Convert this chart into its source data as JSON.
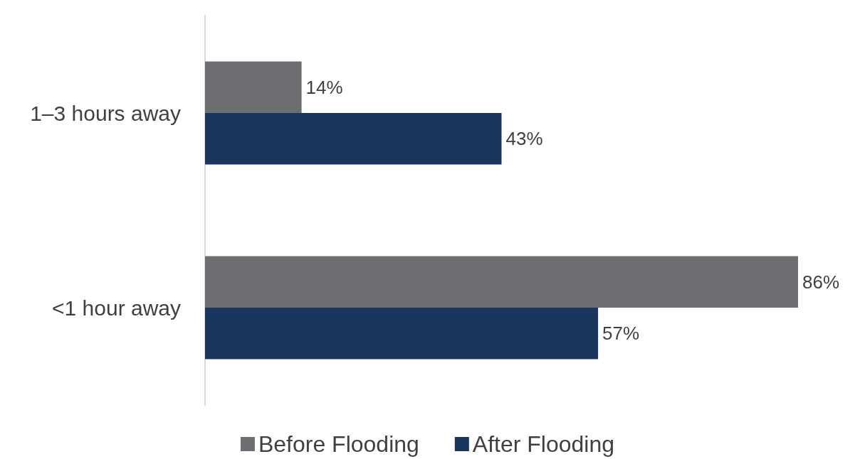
{
  "chart_data": {
    "type": "bar",
    "orientation": "horizontal",
    "categories": [
      "1–3 hours away",
      "<1 hour away"
    ],
    "series": [
      {
        "name": "Before Flooding",
        "color": "#6d6e71",
        "values": [
          14,
          86
        ],
        "value_labels": [
          "14%",
          "86%"
        ]
      },
      {
        "name": "After Flooding",
        "color": "#1b365d",
        "values": [
          43,
          57
        ],
        "value_labels": [
          "43%",
          "57%"
        ]
      }
    ],
    "legend": "bottom",
    "grid": false
  }
}
